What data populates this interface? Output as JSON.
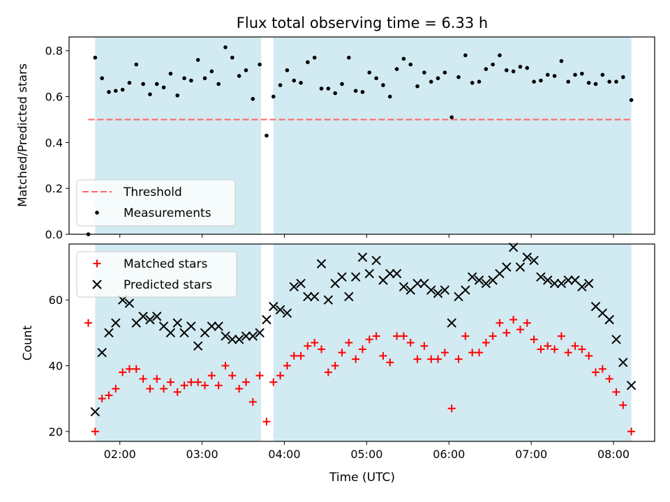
{
  "chart_data": [
    {
      "type": "scatter",
      "title": "Flux total observing time = 6.33 h",
      "xlabel": "",
      "ylabel": "Matched/Predicted stars",
      "xlim": [
        "01:23",
        "08:30"
      ],
      "ylim": [
        0,
        0.86
      ],
      "yticks": [
        "0.0",
        "0.2",
        "0.4",
        "0.6",
        "0.8"
      ],
      "shaded_intervals": [
        [
          "01:42",
          "03:43"
        ],
        [
          "03:52",
          "08:13"
        ]
      ],
      "shade_color": "#add8e6",
      "threshold": {
        "name": "Threshold",
        "value": 0.5,
        "x_start": "01:37",
        "x_end": "08:12",
        "color": "#ff6666"
      },
      "legend_position": "lower-left",
      "series": [
        {
          "name": "Measurements",
          "color": "#000000",
          "points": [
            [
              "01:37",
              0.0
            ],
            [
              "01:42",
              0.77
            ],
            [
              "01:47",
              0.68
            ],
            [
              "01:52",
              0.62
            ],
            [
              "01:57",
              0.625
            ],
            [
              "02:02",
              0.63
            ],
            [
              "02:07",
              0.66
            ],
            [
              "02:12",
              0.74
            ],
            [
              "02:17",
              0.655
            ],
            [
              "02:22",
              0.61
            ],
            [
              "02:27",
              0.655
            ],
            [
              "02:32",
              0.64
            ],
            [
              "02:37",
              0.7
            ],
            [
              "02:42",
              0.605
            ],
            [
              "02:47",
              0.68
            ],
            [
              "02:52",
              0.67
            ],
            [
              "02:57",
              0.76
            ],
            [
              "03:02",
              0.68
            ],
            [
              "03:07",
              0.71
            ],
            [
              "03:12",
              0.655
            ],
            [
              "03:17",
              0.815
            ],
            [
              "03:22",
              0.77
            ],
            [
              "03:27",
              0.69
            ],
            [
              "03:32",
              0.715
            ],
            [
              "03:37",
              0.59
            ],
            [
              "03:42",
              0.74
            ],
            [
              "03:47",
              0.43
            ],
            [
              "03:52",
              0.6
            ],
            [
              "03:57",
              0.65
            ],
            [
              "04:02",
              0.715
            ],
            [
              "04:07",
              0.67
            ],
            [
              "04:12",
              0.66
            ],
            [
              "04:17",
              0.75
            ],
            [
              "04:22",
              0.77
            ],
            [
              "04:27",
              0.635
            ],
            [
              "04:32",
              0.635
            ],
            [
              "04:37",
              0.615
            ],
            [
              "04:42",
              0.655
            ],
            [
              "04:47",
              0.77
            ],
            [
              "04:52",
              0.625
            ],
            [
              "04:57",
              0.62
            ],
            [
              "05:02",
              0.705
            ],
            [
              "05:07",
              0.68
            ],
            [
              "05:12",
              0.65
            ],
            [
              "05:17",
              0.6
            ],
            [
              "05:22",
              0.72
            ],
            [
              "05:27",
              0.765
            ],
            [
              "05:32",
              0.74
            ],
            [
              "05:37",
              0.645
            ],
            [
              "05:42",
              0.705
            ],
            [
              "05:47",
              0.665
            ],
            [
              "05:52",
              0.68
            ],
            [
              "05:57",
              0.705
            ],
            [
              "06:02",
              0.51
            ],
            [
              "06:07",
              0.685
            ],
            [
              "06:12",
              0.78
            ],
            [
              "06:17",
              0.66
            ],
            [
              "06:22",
              0.665
            ],
            [
              "06:27",
              0.72
            ],
            [
              "06:32",
              0.74
            ],
            [
              "06:37",
              0.78
            ],
            [
              "06:42",
              0.715
            ],
            [
              "06:47",
              0.71
            ],
            [
              "06:52",
              0.73
            ],
            [
              "06:57",
              0.725
            ],
            [
              "07:02",
              0.665
            ],
            [
              "07:07",
              0.67
            ],
            [
              "07:12",
              0.695
            ],
            [
              "07:17",
              0.69
            ],
            [
              "07:22",
              0.755
            ],
            [
              "07:27",
              0.665
            ],
            [
              "07:32",
              0.695
            ],
            [
              "07:37",
              0.7
            ],
            [
              "07:42",
              0.66
            ],
            [
              "07:47",
              0.655
            ],
            [
              "07:52",
              0.695
            ],
            [
              "07:57",
              0.665
            ],
            [
              "08:02",
              0.665
            ],
            [
              "08:07",
              0.685
            ],
            [
              "08:13",
              0.585
            ]
          ]
        }
      ]
    },
    {
      "type": "scatter",
      "title": "",
      "xlabel": "Time (UTC)",
      "ylabel": "Count",
      "xlim": [
        "01:23",
        "08:30"
      ],
      "ylim": [
        17,
        77
      ],
      "yticks": [
        "20",
        "40",
        "60"
      ],
      "xticks": [
        "02:00",
        "03:00",
        "04:00",
        "05:00",
        "06:00",
        "07:00",
        "08:00"
      ],
      "shaded_intervals": [
        [
          "01:42",
          "03:43"
        ],
        [
          "03:52",
          "08:13"
        ]
      ],
      "shade_color": "#add8e6",
      "legend_position": "top-left",
      "x": [
        "01:37",
        "01:42",
        "01:47",
        "01:52",
        "01:57",
        "02:02",
        "02:07",
        "02:12",
        "02:17",
        "02:22",
        "02:27",
        "02:32",
        "02:37",
        "02:42",
        "02:47",
        "02:52",
        "02:57",
        "03:02",
        "03:07",
        "03:12",
        "03:17",
        "03:22",
        "03:27",
        "03:32",
        "03:37",
        "03:42",
        "03:47",
        "03:52",
        "03:57",
        "04:02",
        "04:07",
        "04:12",
        "04:17",
        "04:22",
        "04:27",
        "04:32",
        "04:37",
        "04:42",
        "04:47",
        "04:52",
        "04:57",
        "05:02",
        "05:07",
        "05:12",
        "05:17",
        "05:22",
        "05:27",
        "05:32",
        "05:37",
        "05:42",
        "05:47",
        "05:52",
        "05:57",
        "06:02",
        "06:07",
        "06:12",
        "06:17",
        "06:22",
        "06:27",
        "06:32",
        "06:37",
        "06:42",
        "06:47",
        "06:52",
        "06:57",
        "07:02",
        "07:07",
        "07:12",
        "07:17",
        "07:22",
        "07:27",
        "07:32",
        "07:37",
        "07:42",
        "07:47",
        "07:52",
        "07:57",
        "08:02",
        "08:07",
        "08:13"
      ],
      "series": [
        {
          "name": "Matched stars",
          "color": "#ff0000",
          "marker": "plus",
          "values": [
            53,
            20,
            30,
            31,
            33,
            38,
            39,
            39,
            36,
            33,
            36,
            33,
            35,
            32,
            34,
            35,
            35,
            34,
            37,
            34,
            40,
            37,
            33,
            35,
            29,
            37,
            23,
            35,
            37,
            40,
            43,
            43,
            46,
            47,
            45,
            38,
            40,
            44,
            47,
            42,
            45,
            48,
            49,
            43,
            41,
            49,
            49,
            47,
            42,
            46,
            42,
            42,
            44,
            27,
            42,
            49,
            44,
            44,
            47,
            49,
            53,
            50,
            54,
            51,
            53,
            48,
            45,
            46,
            45,
            49,
            44,
            46,
            45,
            43,
            38,
            39,
            36,
            32,
            28,
            20
          ]
        },
        {
          "name": "Predicted stars",
          "color": "#000000",
          "marker": "x",
          "values": [
            null,
            26,
            44,
            50,
            53,
            60,
            59,
            53,
            55,
            54,
            55,
            52,
            50,
            53,
            50,
            52,
            46,
            50,
            52,
            52,
            49,
            48,
            48,
            49,
            49,
            50,
            54,
            58,
            57,
            56,
            64,
            65,
            61,
            61,
            71,
            60,
            65,
            67,
            61,
            67,
            73,
            68,
            72,
            66,
            68,
            68,
            64,
            63,
            65,
            65,
            63,
            62,
            63,
            53,
            61,
            63,
            67,
            66,
            65,
            66,
            68,
            70,
            76,
            70,
            73,
            72,
            67,
            66,
            65,
            65,
            66,
            66,
            64,
            65,
            58,
            56,
            54,
            48,
            41,
            34
          ]
        }
      ]
    }
  ]
}
